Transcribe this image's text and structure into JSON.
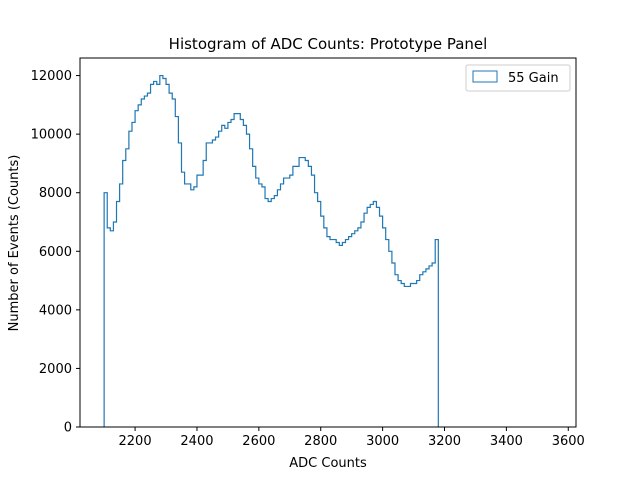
{
  "chart_data": {
    "type": "histogram",
    "title": "Histogram of ADC Counts: Prototype Panel",
    "xlabel": "ADC Counts",
    "ylabel": "Number of Events (Counts)",
    "xlim": [
      2022,
      3625
    ],
    "ylim": [
      0,
      12600
    ],
    "x_ticks": [
      2200,
      2400,
      2600,
      2800,
      3000,
      3200,
      3400,
      3600
    ],
    "y_ticks": [
      0,
      2000,
      4000,
      6000,
      8000,
      10000,
      12000
    ],
    "grid": false,
    "legend": {
      "position": "top-right",
      "entries": [
        "55 Gain"
      ]
    },
    "colors": {
      "series": "#1f77b4"
    },
    "series": [
      {
        "name": "55 Gain",
        "bin_start": 2100,
        "bin_width": 10,
        "counts": [
          8000,
          6800,
          6700,
          7000,
          7700,
          8300,
          9100,
          9500,
          10100,
          10400,
          10800,
          11000,
          11200,
          11300,
          11400,
          11700,
          11800,
          11700,
          12000,
          11900,
          11700,
          11400,
          11200,
          10600,
          9700,
          8700,
          8300,
          8300,
          8100,
          8200,
          8600,
          8600,
          9100,
          9700,
          9700,
          9800,
          9900,
          10100,
          10300,
          10200,
          10400,
          10500,
          10700,
          10700,
          10500,
          10300,
          10000,
          9500,
          8900,
          8500,
          8300,
          8200,
          7800,
          7700,
          7800,
          7900,
          8100,
          8300,
          8500,
          8500,
          8600,
          8900,
          8900,
          9200,
          9200,
          9100,
          8900,
          8600,
          8000,
          7700,
          7200,
          6800,
          6500,
          6400,
          6400,
          6300,
          6200,
          6300,
          6400,
          6500,
          6600,
          6700,
          6800,
          7000,
          7300,
          7500,
          7600,
          7700,
          7500,
          7200,
          6800,
          6400,
          6000,
          5600,
          5200,
          5000,
          4900,
          4800,
          4800,
          4900,
          4900,
          5000,
          5200,
          5300,
          5400,
          5500,
          5600,
          6400
        ]
      }
    ]
  }
}
